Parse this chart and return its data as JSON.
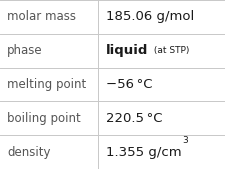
{
  "rows": [
    {
      "label": "molar mass",
      "value_text": "185.06 g/mol",
      "bold": false,
      "has_super": false,
      "has_small": false
    },
    {
      "label": "phase",
      "value_text": "liquid",
      "bold": true,
      "has_super": false,
      "has_small": true,
      "small_text": " (at STP)"
    },
    {
      "label": "melting point",
      "value_text": "−56 °C",
      "bold": false,
      "has_super": false,
      "has_small": false
    },
    {
      "label": "boiling point",
      "value_text": "220.5 °C",
      "bold": false,
      "has_super": false,
      "has_small": false
    },
    {
      "label": "density",
      "value_text": "1.355 g/cm",
      "bold": false,
      "has_super": true,
      "has_small": false,
      "super_text": "3"
    }
  ],
  "col_split": 0.435,
  "background": "#ffffff",
  "line_color": "#c8c8c8",
  "label_color": "#555555",
  "value_color": "#1a1a1a",
  "label_fontsize": 8.5,
  "value_fontsize": 9.5,
  "small_fontsize": 6.5,
  "super_fontsize": 6.5
}
